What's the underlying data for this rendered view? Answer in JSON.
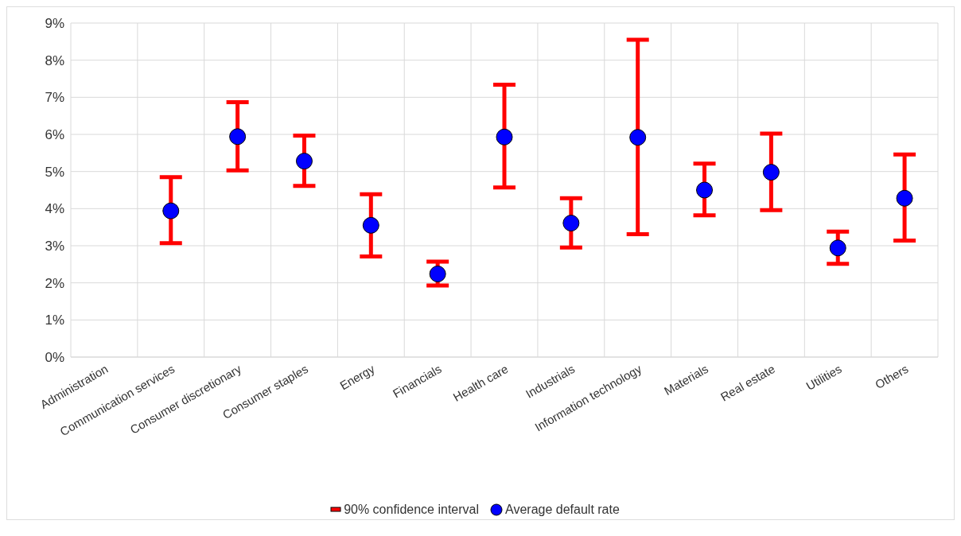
{
  "chart_data": {
    "type": "scatter",
    "categories": [
      "Administration",
      "Communication services",
      "Consumer discretionary",
      "Consumer staples",
      "Energy",
      "Financials",
      "Health care",
      "Industrials",
      "Information technology",
      "Materials",
      "Real estate",
      "Utilities",
      "Others"
    ],
    "series": [
      {
        "name": "Average default rate",
        "color": "#0000ff",
        "values": [
          null,
          3.94,
          5.94,
          5.28,
          3.55,
          2.24,
          5.93,
          3.61,
          5.92,
          4.5,
          4.98,
          2.94,
          4.28
        ],
        "errors": [
          null,
          [
            3.07,
            4.85
          ],
          [
            5.03,
            6.87
          ],
          [
            4.61,
            5.97
          ],
          [
            2.71,
            4.39
          ],
          [
            1.93,
            2.57
          ],
          [
            4.57,
            7.34
          ],
          [
            2.95,
            4.28
          ],
          [
            3.31,
            8.55
          ],
          [
            3.82,
            5.21
          ],
          [
            3.96,
            6.02
          ],
          [
            2.51,
            3.38
          ],
          [
            3.14,
            5.46
          ]
        ]
      }
    ],
    "ylim": [
      0,
      9
    ],
    "yticks": [
      {
        "value": 0,
        "label": "0%"
      },
      {
        "value": 1,
        "label": "1%"
      },
      {
        "value": 2,
        "label": "2%"
      },
      {
        "value": 3,
        "label": "3%"
      },
      {
        "value": 4,
        "label": "4%"
      },
      {
        "value": 5,
        "label": "5%"
      },
      {
        "value": 6,
        "label": "6%"
      },
      {
        "value": 7,
        "label": "7%"
      },
      {
        "value": 8,
        "label": "8%"
      },
      {
        "value": 9,
        "label": "9%"
      }
    ],
    "grid": true,
    "legend": "bottom",
    "marker": "circle",
    "annotations": [
      "90% confidence interval"
    ]
  }
}
